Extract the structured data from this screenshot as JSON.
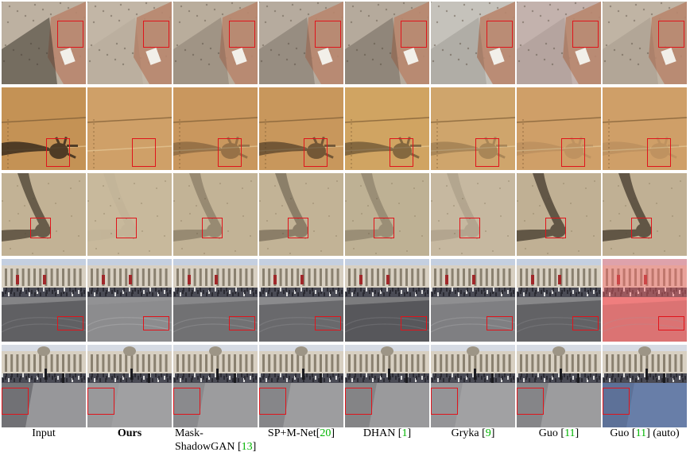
{
  "columns": [
    {
      "id": "input",
      "label": "Input",
      "ref": "",
      "suffix": ""
    },
    {
      "id": "ours",
      "label": "Ours",
      "ref": "",
      "suffix": "",
      "bold": true
    },
    {
      "id": "mask-shadowgan",
      "label": "Mask-ShadowGAN [",
      "label_line1": "Mask-",
      "label_line2": "ShadowGAN [",
      "ref": "13",
      "suffix": "]"
    },
    {
      "id": "sp-m-net",
      "label": "SP+M-Net[",
      "ref": "20",
      "suffix": "]"
    },
    {
      "id": "dhan",
      "label": "DHAN [",
      "ref": "1",
      "suffix": "]"
    },
    {
      "id": "gryka",
      "label": "Gryka [",
      "ref": "9",
      "suffix": "]"
    },
    {
      "id": "guo",
      "label": "Guo [",
      "ref": "11",
      "suffix": "]"
    },
    {
      "id": "guo-auto",
      "label": "Guo [",
      "ref": "11",
      "suffix": "] (auto)"
    }
  ],
  "rows": [
    {
      "id": "sand-box-shadow",
      "scene": "sand",
      "bg": "#bfb3a3",
      "shadow_strength": [
        0.55,
        0.05,
        0.2,
        0.25,
        0.3,
        0.15,
        0.1,
        0.1
      ],
      "tints": [
        "#bdb1a1",
        "#c2b6a6",
        "#b9ad9c",
        "#b6ab9e",
        "#b5aa9c",
        "#c5c2bb",
        "#c3b2ad",
        "#c0b4a4"
      ]
    },
    {
      "id": "cardboard-hand",
      "scene": "cardboard",
      "bg": "#c8965a",
      "shadow_strength": [
        0.85,
        0.0,
        0.35,
        0.6,
        0.5,
        0.25,
        0.1,
        0.1
      ],
      "tints": [
        "#c49255",
        "#cfa068",
        "#c9975e",
        "#c8975c",
        "#d0a462",
        "#cfa56c",
        "#cf9f68",
        "#cf9f68"
      ]
    },
    {
      "id": "sand-arm",
      "scene": "sand-arm",
      "bg": "#c4b497",
      "shadow_strength": [
        0.75,
        0.03,
        0.35,
        0.45,
        0.3,
        0.15,
        0.8,
        0.8
      ],
      "tints": [
        "#c2b295",
        "#c8b99c",
        "#c2b396",
        "#c2b396",
        "#beb194",
        "#c6b8a0",
        "#c0b094",
        "#c0b094"
      ]
    },
    {
      "id": "trafalgar-1",
      "scene": "plaza",
      "bg": "#8a8a8c",
      "shadow_strength": [
        0.4,
        0.05,
        0.25,
        0.35,
        0.45,
        0.15,
        0.4,
        0.2
      ],
      "tints": [
        "#848486",
        "#929294",
        "#88888a",
        "#8b8b8d",
        "#7c7c7e",
        "#8f8f91",
        "#878789",
        "#e28e8e"
      ]
    },
    {
      "id": "trafalgar-2",
      "scene": "plaza2",
      "bg": "#9a9a9c",
      "shadow_strength": [
        0.35,
        0.05,
        0.15,
        0.2,
        0.2,
        0.1,
        0.2,
        0.2
      ],
      "tints": [
        "#97979a",
        "#a0a0a2",
        "#9c9c9e",
        "#9d9d9f",
        "#9a9a9c",
        "#a1a1a3",
        "#9c9c9e",
        "#7e8fa8"
      ]
    }
  ],
  "highlight_color": "#e0141b"
}
